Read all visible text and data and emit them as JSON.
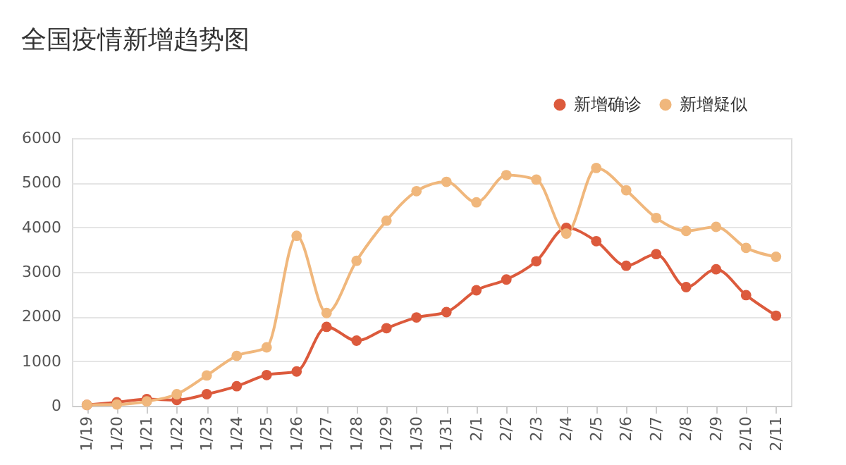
{
  "chart_data": {
    "type": "line",
    "title": "全国疫情新增趋势图",
    "categories": [
      "1/19",
      "1/20",
      "1/21",
      "1/22",
      "1/23",
      "1/24",
      "1/25",
      "1/26",
      "1/27",
      "1/28",
      "1/29",
      "1/30",
      "1/31",
      "2/1",
      "2/2",
      "2/3",
      "2/4",
      "2/5",
      "2/6",
      "2/7",
      "2/8",
      "2/9",
      "2/10",
      "2/11"
    ],
    "series": [
      {
        "name": "新增确诊",
        "color": "#dc5a3c",
        "values": [
          20,
          80,
          150,
          130,
          260,
          440,
          690,
          770,
          1770,
          1460,
          1740,
          1980,
          2100,
          2590,
          2830,
          3240,
          3990,
          3690,
          3140,
          3400,
          2660,
          3060,
          2480,
          2020
        ]
      },
      {
        "name": "新增疑似",
        "color": "#f0b77c",
        "values": [
          20,
          30,
          100,
          260,
          680,
          1120,
          1310,
          3810,
          2080,
          3250,
          4150,
          4810,
          5020,
          4560,
          5170,
          5070,
          3860,
          5330,
          4830,
          4210,
          3920,
          4010,
          3540,
          3340
        ]
      }
    ],
    "ylim": [
      0,
      6000
    ],
    "yticks": [
      0,
      1000,
      2000,
      3000,
      4000,
      5000,
      6000
    ],
    "grid": "y",
    "legend": "top right",
    "marker": "circle",
    "line_style": "solid"
  }
}
